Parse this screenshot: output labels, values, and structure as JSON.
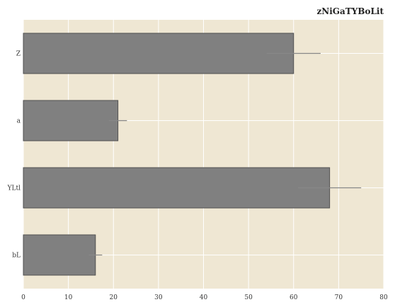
{
  "chart_data": {
    "type": "bar",
    "orientation": "horizontal",
    "title": "zNiGaTYBoLit",
    "xlabel": "",
    "ylabel": "",
    "categories": [
      "Z",
      "a",
      "YLtl",
      "bL"
    ],
    "values": [
      60,
      21,
      68,
      16
    ],
    "errors": [
      6,
      2,
      7,
      1.5
    ],
    "xlim": [
      0,
      80
    ],
    "xticks": [
      0,
      10,
      20,
      30,
      40,
      50,
      60,
      70,
      80
    ],
    "grid": true,
    "legend": "none",
    "colors": {
      "background": "#efe7d3",
      "bar": "#808080",
      "bar_edge": "#505050",
      "grid": "#ffffff",
      "error_bar": "#888888"
    }
  }
}
